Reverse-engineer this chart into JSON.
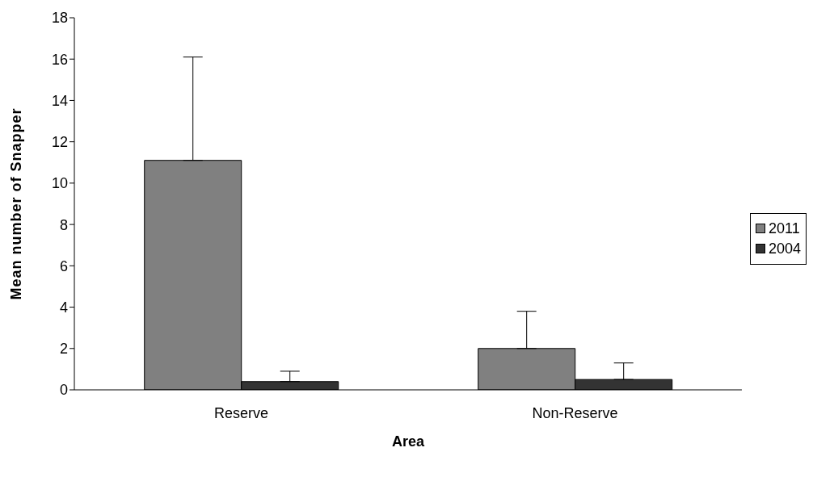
{
  "chart_data": {
    "type": "bar",
    "xlabel": "Area",
    "ylabel": "Mean number of Snapper",
    "categories": [
      "Reserve",
      "Non-Reserve"
    ],
    "series": [
      {
        "name": "2011",
        "color": "#808080",
        "values": [
          11.1,
          2.0
        ],
        "errors": [
          [
            11.1,
            16.1
          ],
          [
            2.0,
            3.8
          ]
        ]
      },
      {
        "name": "2004",
        "color": "#333333",
        "values": [
          0.4,
          0.5
        ],
        "errors": [
          [
            0.4,
            0.9
          ],
          [
            0.5,
            1.3
          ]
        ]
      }
    ],
    "ylim": [
      0,
      18
    ],
    "yticks": [
      0,
      2,
      4,
      6,
      8,
      10,
      12,
      14,
      16,
      18
    ],
    "grid": false,
    "legend": "right"
  }
}
